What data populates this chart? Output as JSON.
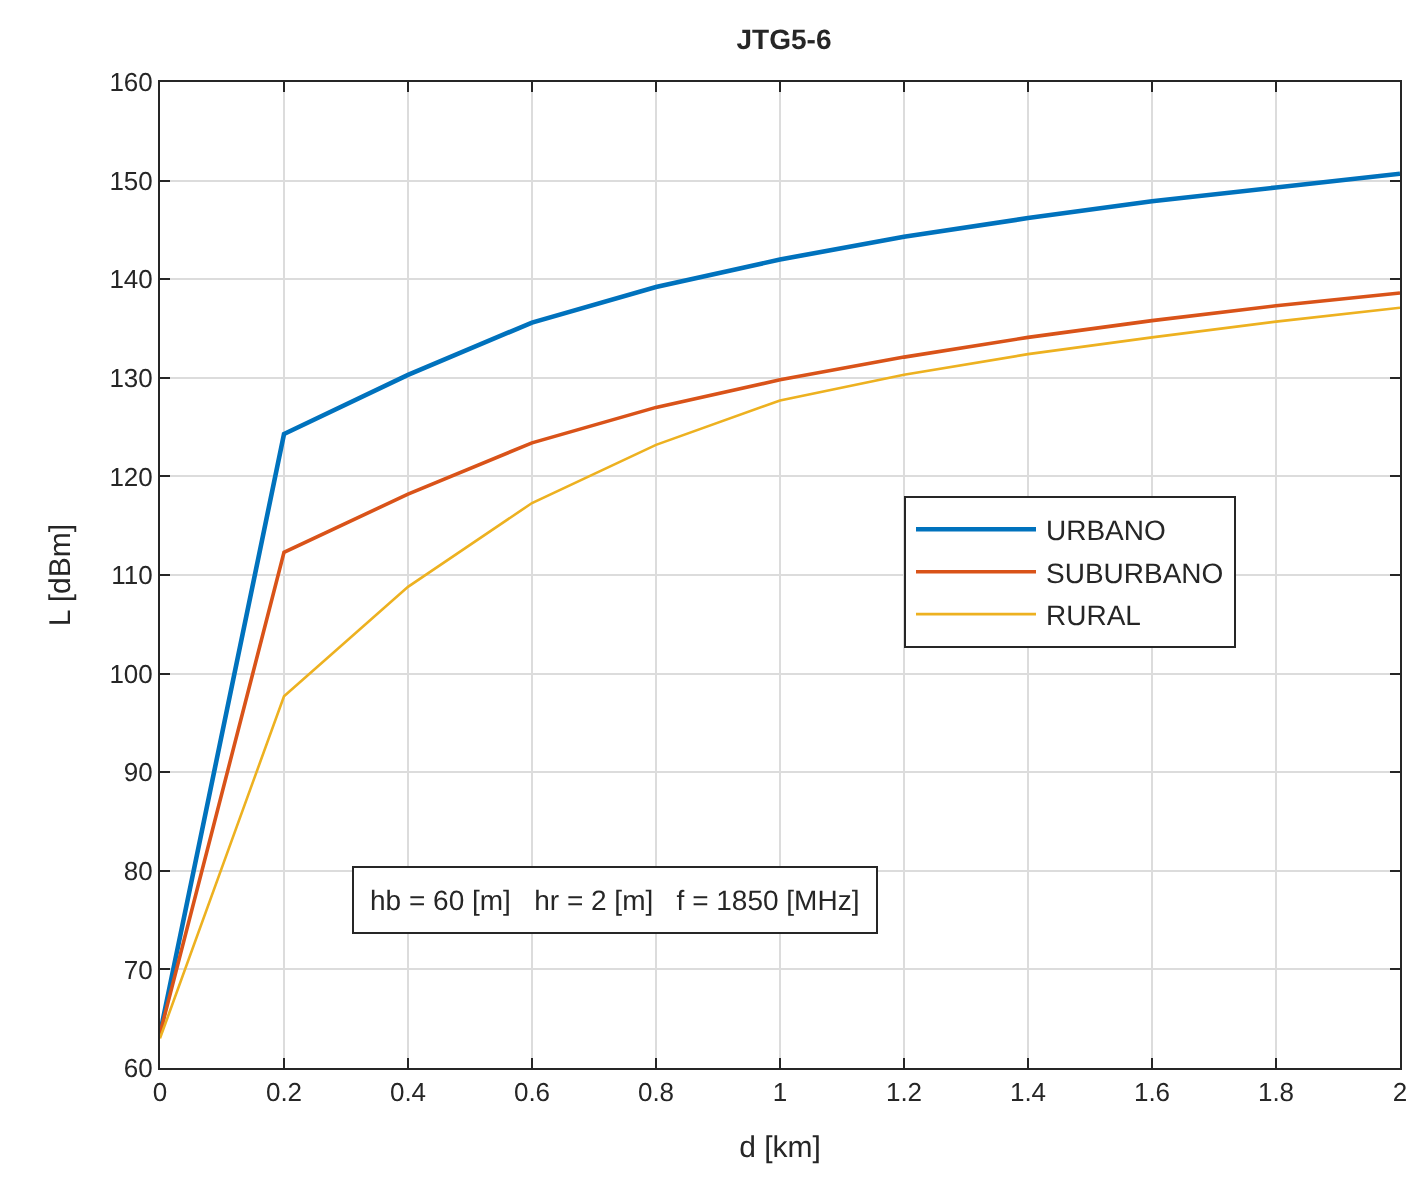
{
  "chart_data": {
    "type": "line",
    "title": "JTG5-6",
    "xlabel": "d [km]",
    "ylabel": "L [dBm]",
    "x": [
      0,
      0.2,
      0.4,
      0.6,
      0.8,
      1.0,
      1.2,
      1.4,
      1.6,
      1.8,
      2.0
    ],
    "series": [
      {
        "name": "URBANO",
        "color": "#0072bd",
        "values": [
          63.5,
          124.3,
          130.3,
          135.6,
          139.2,
          142.0,
          144.3,
          146.2,
          147.9,
          149.3,
          150.7
        ]
      },
      {
        "name": "SUBURBANO",
        "color": "#d95319",
        "values": [
          63.5,
          112.3,
          118.2,
          123.4,
          127.0,
          129.8,
          132.1,
          134.1,
          135.8,
          137.3,
          138.6
        ]
      },
      {
        "name": "RURAL",
        "color": "#edb120",
        "values": [
          63.0,
          97.7,
          108.8,
          117.3,
          123.2,
          127.7,
          130.3,
          132.4,
          134.1,
          135.7,
          137.1
        ]
      }
    ],
    "xlim": [
      0,
      2
    ],
    "xticks": [
      0,
      0.2,
      0.4,
      0.6,
      0.8,
      1,
      1.2,
      1.4,
      1.6,
      1.8,
      2
    ],
    "ylim": [
      60,
      160
    ],
    "yticks": [
      60,
      70,
      80,
      90,
      100,
      110,
      120,
      130,
      140,
      150,
      160
    ],
    "grid": true,
    "legend": "right",
    "marker": "none",
    "line_style": "solid",
    "annotations": [
      "hb = 60 [m]   hr = 2 [m]   f = 1850 [MHz]"
    ]
  }
}
